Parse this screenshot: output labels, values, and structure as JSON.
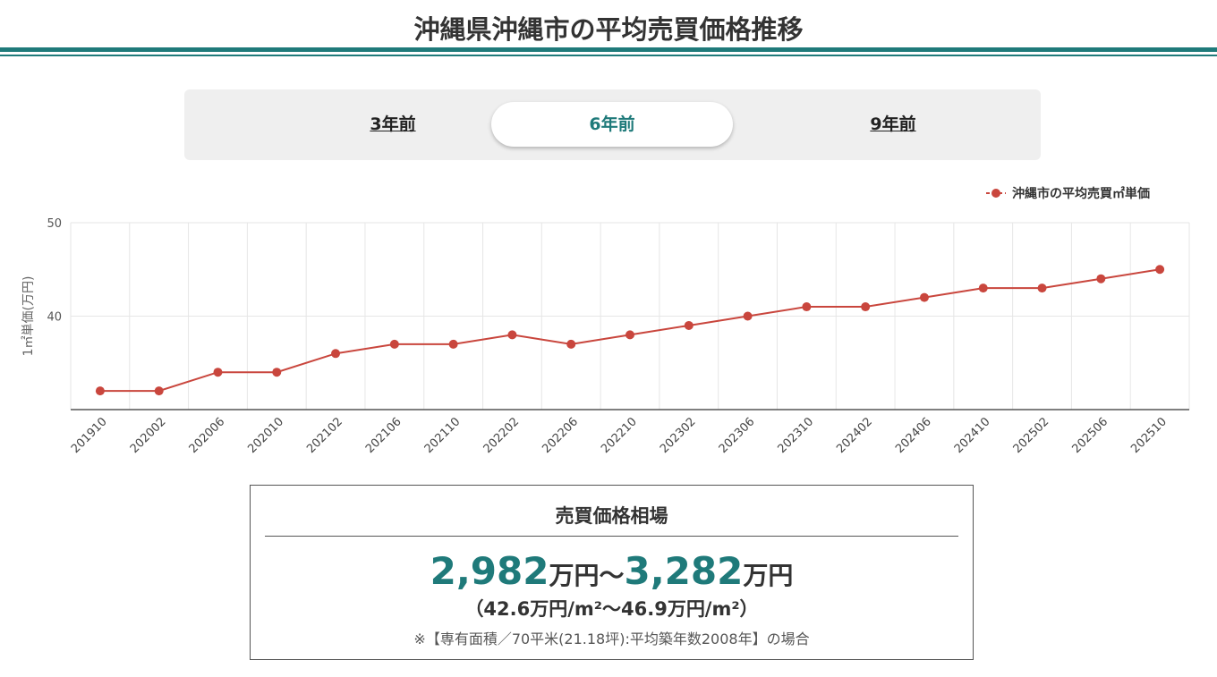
{
  "header": {
    "title": "沖縄県沖縄市の平均売買価格推移"
  },
  "tabs": [
    {
      "label": "3年前",
      "active": false
    },
    {
      "label": "6年前",
      "active": true
    },
    {
      "label": "9年前",
      "active": false
    }
  ],
  "colors": {
    "accent": "#1f7a7a",
    "series": "#c9463d"
  },
  "chart_data": {
    "type": "line",
    "ylabel": "1㎡単価(万円)",
    "ylim": [
      30,
      50
    ],
    "yticks": [
      40,
      50
    ],
    "grid": true,
    "legend_position": "top-right",
    "categories": [
      "201910",
      "202002",
      "202006",
      "202010",
      "202102",
      "202106",
      "202110",
      "202202",
      "202206",
      "202210",
      "202302",
      "202306",
      "202310",
      "202402",
      "202406",
      "202410",
      "202502",
      "202506",
      "202510"
    ],
    "series": [
      {
        "name": "沖縄市の平均売買㎡単価",
        "values": [
          32,
          32,
          34,
          34,
          36,
          37,
          37,
          38,
          37,
          38,
          39,
          40,
          41,
          41,
          42,
          43,
          43,
          44,
          45
        ]
      }
    ]
  },
  "summary": {
    "heading": "売買価格相場",
    "low": "2,982",
    "high": "3,282",
    "unit": "万円",
    "sep": "〜",
    "per_sqm": "（42.6万円/m²〜46.9万円/m²）",
    "note": "※【専有面積／70平米(21.18坪):平均築年数2008年】の場合"
  }
}
